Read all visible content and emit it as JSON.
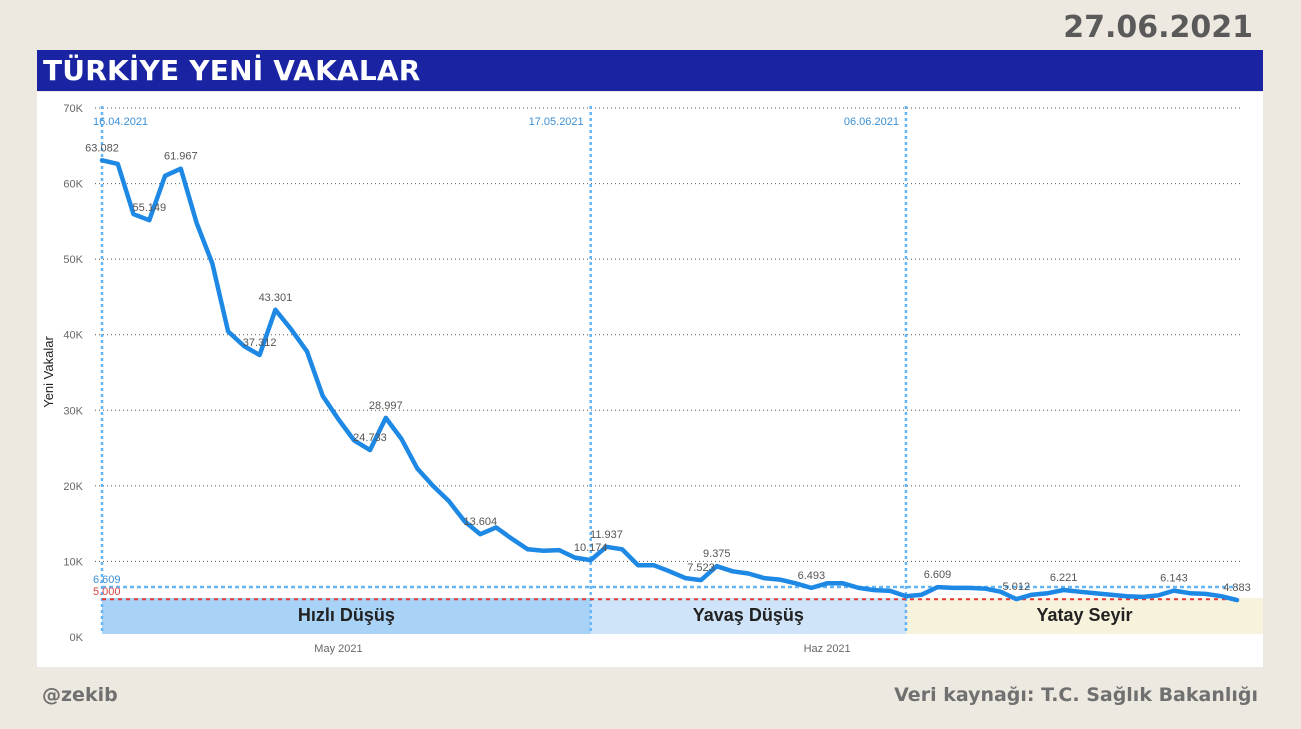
{
  "header": {
    "date": "27.06.2021",
    "title": "TÜRKİYE YENİ VAKALAR"
  },
  "footer": {
    "author": "@zekib",
    "source": "Veri kaynağı: T.C. Sağlık Bakanlığı"
  },
  "colors": {
    "title_bar": "#1a24a3",
    "series_line": "#1e88e5",
    "marker_line": "#64b5f6",
    "threshold_line": "#e53935",
    "reference_line": "#64b5f6",
    "phase_fast": "#a9d2f7",
    "phase_slow": "#cfe4f8",
    "phase_flat": "#f7f2dc"
  },
  "chart_data": {
    "type": "line",
    "ylabel": "Yeni Vakalar",
    "ylim": [
      0,
      70000
    ],
    "yticks": [
      {
        "value": 0,
        "label": "0K"
      },
      {
        "value": 10000,
        "label": "10K"
      },
      {
        "value": 20000,
        "label": "20K"
      },
      {
        "value": 30000,
        "label": "30K"
      },
      {
        "value": 40000,
        "label": "40K"
      },
      {
        "value": 50000,
        "label": "50K"
      },
      {
        "value": 60000,
        "label": "60K"
      },
      {
        "value": 70000,
        "label": "70K"
      }
    ],
    "xrange": [
      "2021-04-16",
      "2021-06-27"
    ],
    "xticks": [
      {
        "date": "2021-05-01",
        "label": "May 2021"
      },
      {
        "date": "2021-06-01",
        "label": "Haz 2021"
      }
    ],
    "grid": true,
    "series": [
      {
        "x": [
          "2021-04-16",
          "2021-04-17",
          "2021-04-18",
          "2021-04-19",
          "2021-04-20",
          "2021-04-21",
          "2021-04-22",
          "2021-04-23",
          "2021-04-24",
          "2021-04-25",
          "2021-04-26",
          "2021-04-27",
          "2021-04-28",
          "2021-04-29",
          "2021-04-30",
          "2021-05-01",
          "2021-05-02",
          "2021-05-03",
          "2021-05-04",
          "2021-05-05",
          "2021-05-06",
          "2021-05-07",
          "2021-05-08",
          "2021-05-09",
          "2021-05-10",
          "2021-05-11",
          "2021-05-12",
          "2021-05-13",
          "2021-05-14",
          "2021-05-15",
          "2021-05-16",
          "2021-05-17",
          "2021-05-18",
          "2021-05-19",
          "2021-05-20",
          "2021-05-21",
          "2021-05-22",
          "2021-05-23",
          "2021-05-24",
          "2021-05-25",
          "2021-05-26",
          "2021-05-27",
          "2021-05-28",
          "2021-05-29",
          "2021-05-30",
          "2021-05-31",
          "2021-06-01",
          "2021-06-02",
          "2021-06-03",
          "2021-06-04",
          "2021-06-05",
          "2021-06-06",
          "2021-06-07",
          "2021-06-08",
          "2021-06-09",
          "2021-06-10",
          "2021-06-11",
          "2021-06-12",
          "2021-06-13",
          "2021-06-14",
          "2021-06-15",
          "2021-06-16",
          "2021-06-17",
          "2021-06-18",
          "2021-06-19",
          "2021-06-20",
          "2021-06-21",
          "2021-06-22",
          "2021-06-23",
          "2021-06-24",
          "2021-06-25",
          "2021-06-26",
          "2021-06-27"
        ],
        "values": [
          63082,
          62606,
          55941,
          55149,
          61028,
          61967,
          54791,
          49438,
          40444,
          38500,
          37312,
          43301,
          40700,
          37800,
          31900,
          28800,
          26000,
          24733,
          28997,
          26200,
          22300,
          20000,
          18000,
          15300,
          13604,
          14500,
          13000,
          11600,
          11400,
          11500,
          10500,
          10174,
          11937,
          11600,
          9500,
          9500,
          8700,
          7800,
          7523,
          9375,
          8700,
          8400,
          7800,
          7600,
          7100,
          6493,
          7100,
          7100,
          6500,
          6200,
          6100,
          5400,
          5600,
          6609,
          6500,
          6500,
          6400,
          6000,
          5012,
          5600,
          5800,
          6221,
          6000,
          5800,
          5600,
          5400,
          5300,
          5500,
          6143,
          5800,
          5700,
          5400,
          4883
        ]
      }
    ],
    "data_labels": [
      {
        "date": "2021-04-16",
        "value": 63082,
        "label": "63.082"
      },
      {
        "date": "2021-04-19",
        "value": 55149,
        "label": "55.149"
      },
      {
        "date": "2021-04-21",
        "value": 61967,
        "label": "61.967"
      },
      {
        "date": "2021-04-26",
        "value": 37312,
        "label": "37.312"
      },
      {
        "date": "2021-04-27",
        "value": 43301,
        "label": "43.301"
      },
      {
        "date": "2021-05-03",
        "value": 24733,
        "label": "24.733"
      },
      {
        "date": "2021-05-04",
        "value": 28997,
        "label": "28.997"
      },
      {
        "date": "2021-05-10",
        "value": 13604,
        "label": "13.604"
      },
      {
        "date": "2021-05-17",
        "value": 10174,
        "label": "10.174"
      },
      {
        "date": "2021-05-18",
        "value": 11937,
        "label": "11.937"
      },
      {
        "date": "2021-05-24",
        "value": 7523,
        "label": "7.523"
      },
      {
        "date": "2021-05-25",
        "value": 9375,
        "label": "9.375"
      },
      {
        "date": "2021-05-31",
        "value": 6493,
        "label": "6.493"
      },
      {
        "date": "2021-06-08",
        "value": 6609,
        "label": "6.609"
      },
      {
        "date": "2021-06-13",
        "value": 5012,
        "label": "5.012"
      },
      {
        "date": "2021-06-16",
        "value": 6221,
        "label": "6.221"
      },
      {
        "date": "2021-06-23",
        "value": 6143,
        "label": "6.143"
      },
      {
        "date": "2021-06-27",
        "value": 4883,
        "label": "4.883"
      }
    ],
    "date_markers": [
      {
        "date": "2021-04-16",
        "label": "16.04.2021"
      },
      {
        "date": "2021-05-17",
        "label": "17.05.2021"
      },
      {
        "date": "2021-06-06",
        "label": "06.06.2021"
      }
    ],
    "reference_lines": [
      {
        "value": 6609,
        "label": "6.609",
        "style": "blue-dashed"
      },
      {
        "value": 5000,
        "label": "5.000",
        "style": "red-dashed"
      }
    ],
    "phases": [
      {
        "label": "Hızlı Düşüş",
        "start": "2021-04-16",
        "end": "2021-05-17"
      },
      {
        "label": "Yavaş Düşüş",
        "start": "2021-05-17",
        "end": "2021-06-06"
      },
      {
        "label": "Yatay Seyir",
        "start": "2021-06-06",
        "end": "2021-06-27"
      }
    ]
  }
}
